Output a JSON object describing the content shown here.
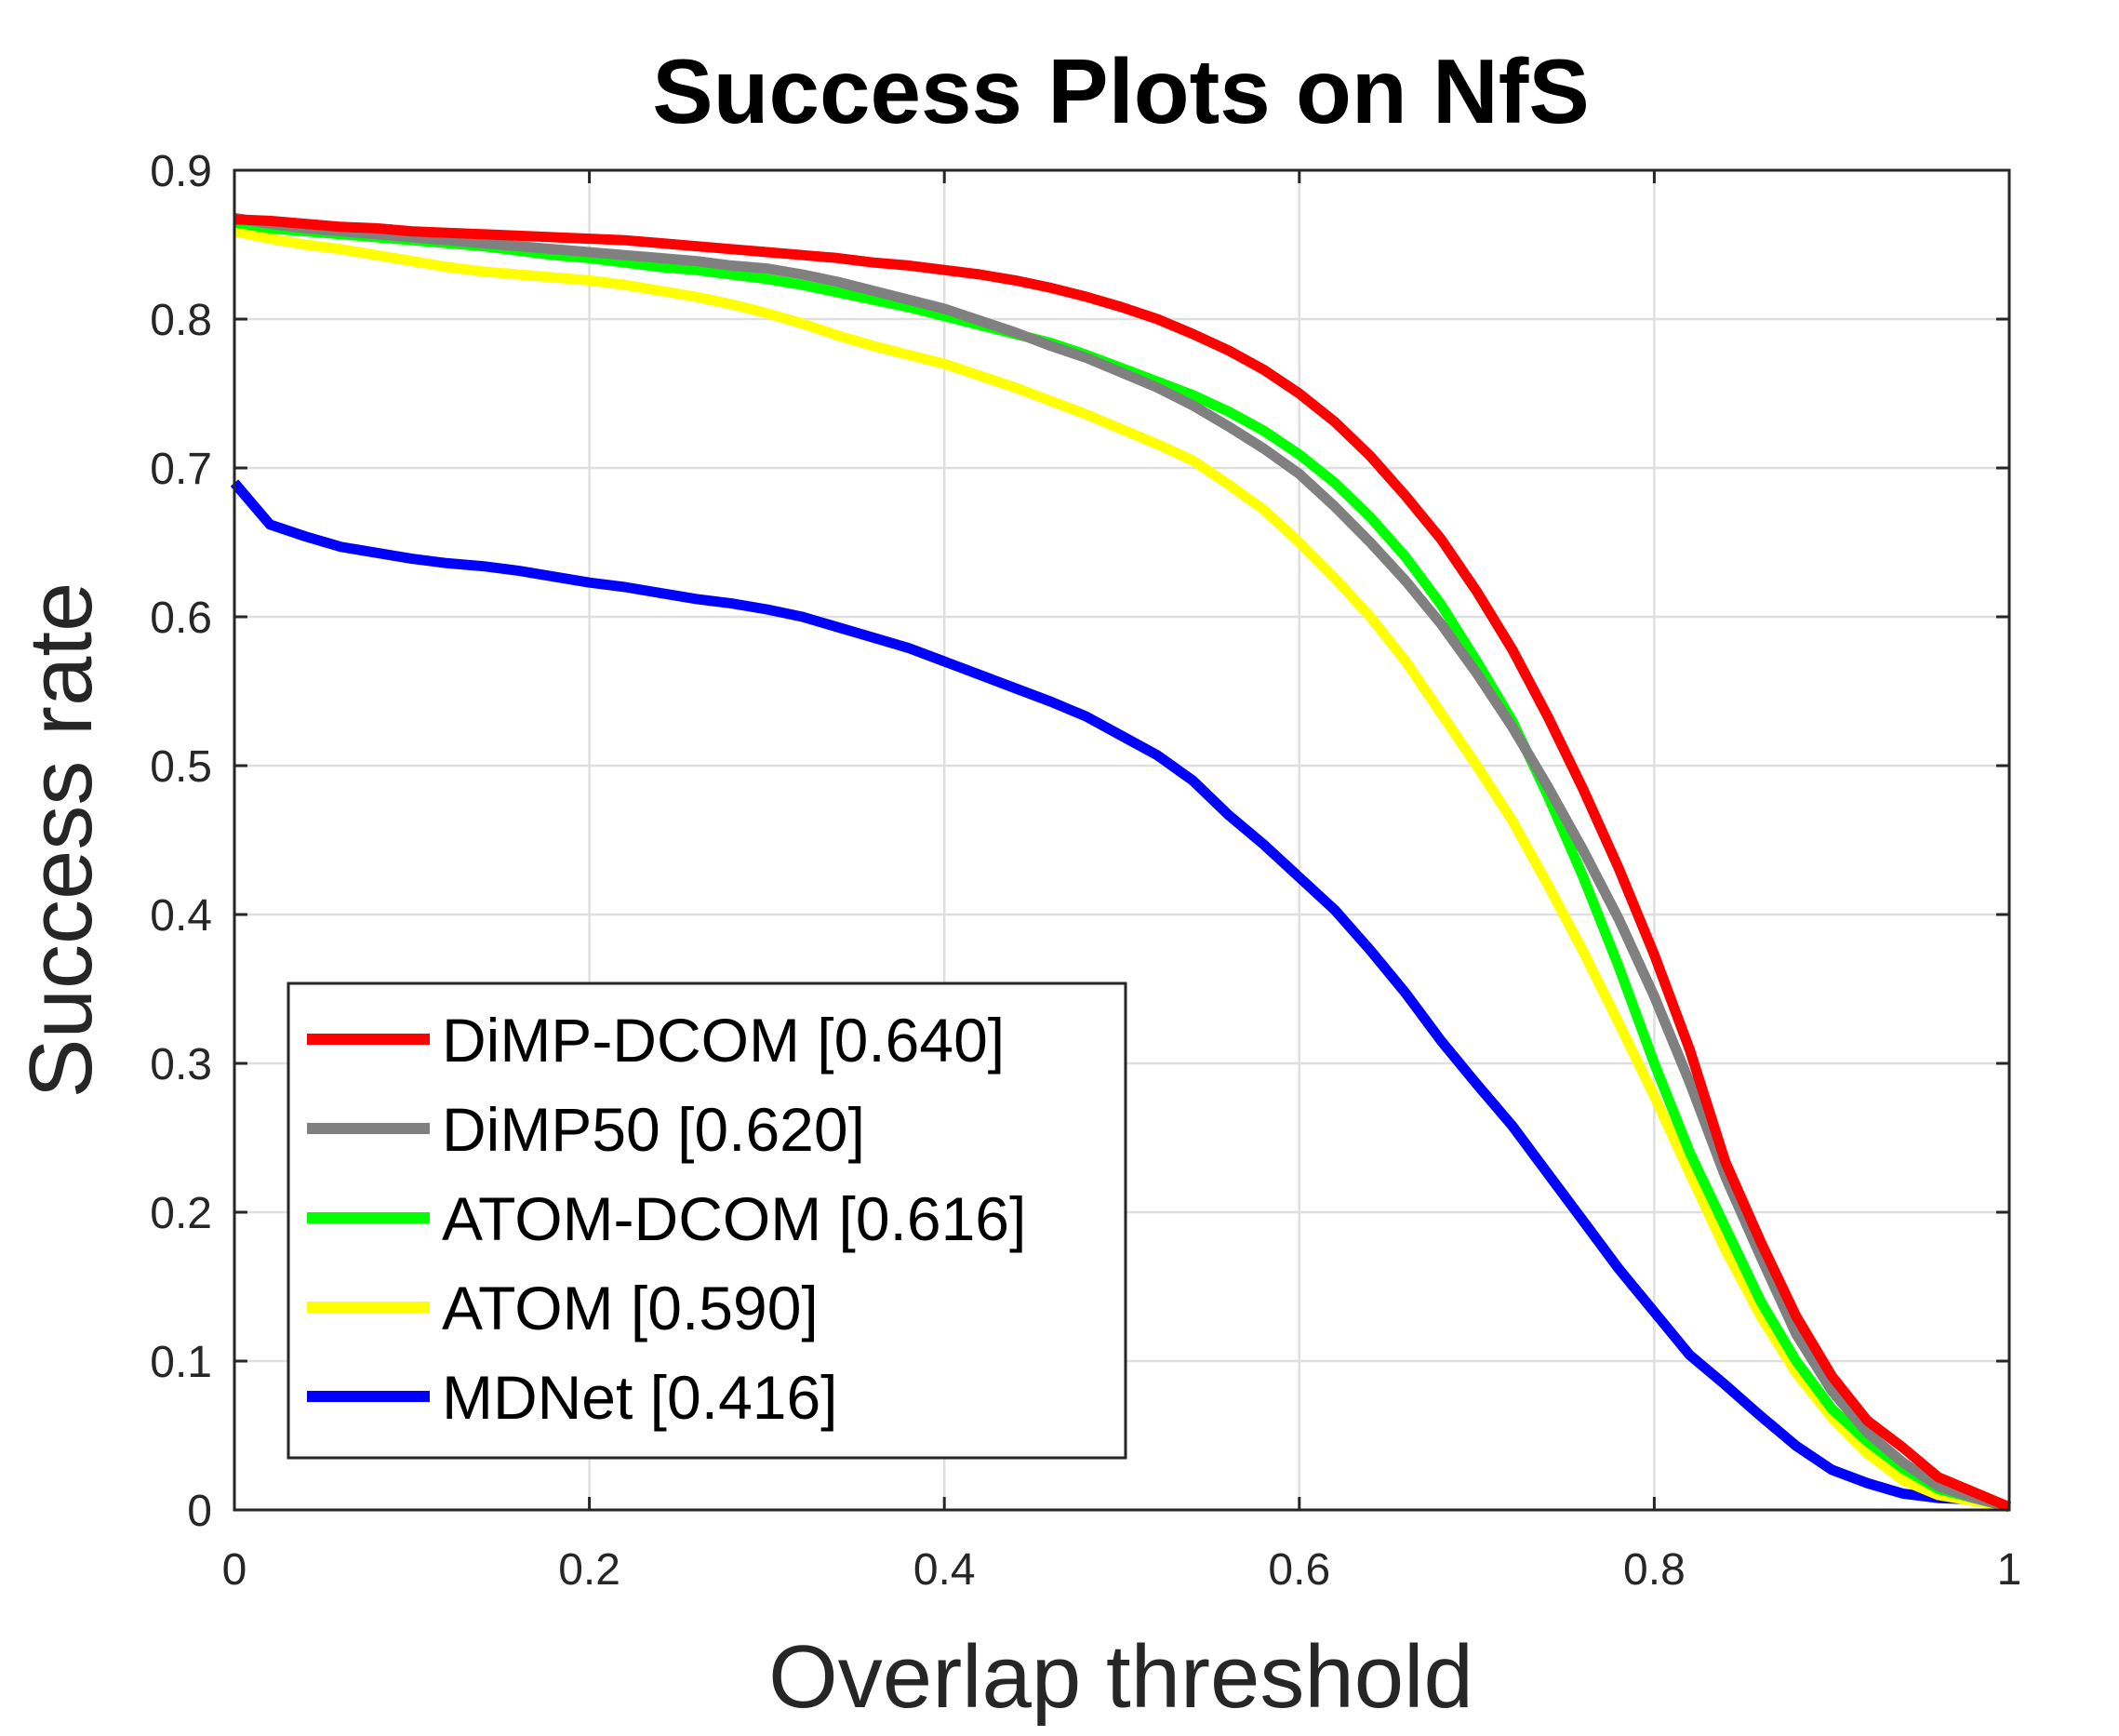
{
  "chart_data": {
    "type": "line",
    "title": "Success Plots on NfS",
    "xlabel": "Overlap threshold",
    "ylabel": "Success rate",
    "xlim": [
      0,
      1
    ],
    "ylim": [
      0,
      0.9
    ],
    "xticks": [
      0,
      0.2,
      0.4,
      0.6,
      0.8,
      1
    ],
    "xtick_labels": [
      "0",
      "0.2",
      "0.4",
      "0.6",
      "0.8",
      "1"
    ],
    "yticks": [
      0,
      0.1,
      0.2,
      0.3,
      0.4,
      0.5,
      0.6,
      0.7,
      0.8,
      0.9
    ],
    "ytick_labels": [
      "0",
      "0.1",
      "0.2",
      "0.3",
      "0.4",
      "0.5",
      "0.6",
      "0.7",
      "0.8",
      "0.9"
    ],
    "grid": true,
    "legend_position": "bottom-left",
    "x": [
      0,
      0.02,
      0.04,
      0.06,
      0.08,
      0.1,
      0.12,
      0.14,
      0.16,
      0.18,
      0.2,
      0.22,
      0.24,
      0.26,
      0.28,
      0.3,
      0.32,
      0.34,
      0.36,
      0.38,
      0.4,
      0.42,
      0.44,
      0.46,
      0.48,
      0.5,
      0.52,
      0.54,
      0.56,
      0.58,
      0.6,
      0.62,
      0.64,
      0.66,
      0.68,
      0.7,
      0.72,
      0.74,
      0.76,
      0.78,
      0.8,
      0.82,
      0.84,
      0.86,
      0.88,
      0.9,
      0.92,
      0.94,
      0.96,
      0.98,
      1.0
    ],
    "series": [
      {
        "name": "DiMP-DCOM [0.640]",
        "color": "#ff0000",
        "values": [
          0.867,
          0.866,
          0.864,
          0.862,
          0.861,
          0.859,
          0.858,
          0.857,
          0.856,
          0.855,
          0.854,
          0.853,
          0.851,
          0.849,
          0.847,
          0.845,
          0.843,
          0.841,
          0.838,
          0.836,
          0.833,
          0.83,
          0.826,
          0.821,
          0.815,
          0.808,
          0.8,
          0.79,
          0.779,
          0.766,
          0.75,
          0.731,
          0.708,
          0.681,
          0.652,
          0.617,
          0.578,
          0.533,
          0.484,
          0.431,
          0.373,
          0.309,
          0.234,
          0.18,
          0.13,
          0.09,
          0.06,
          0.042,
          0.022,
          0.012,
          0.002
        ]
      },
      {
        "name": "DiMP50 [0.620]",
        "color": "#808080",
        "values": [
          0.868,
          0.864,
          0.861,
          0.859,
          0.857,
          0.855,
          0.853,
          0.851,
          0.849,
          0.847,
          0.845,
          0.843,
          0.841,
          0.839,
          0.836,
          0.834,
          0.83,
          0.825,
          0.819,
          0.813,
          0.807,
          0.799,
          0.791,
          0.782,
          0.774,
          0.764,
          0.754,
          0.742,
          0.728,
          0.713,
          0.696,
          0.674,
          0.65,
          0.624,
          0.595,
          0.562,
          0.526,
          0.486,
          0.443,
          0.397,
          0.345,
          0.287,
          0.224,
          0.17,
          0.118,
          0.08,
          0.052,
          0.032,
          0.016,
          0.008,
          0.002
        ]
      },
      {
        "name": "ATOM-DCOM [0.616]",
        "color": "#00ff00",
        "values": [
          0.865,
          0.861,
          0.859,
          0.857,
          0.855,
          0.853,
          0.851,
          0.849,
          0.846,
          0.843,
          0.841,
          0.838,
          0.835,
          0.833,
          0.83,
          0.827,
          0.823,
          0.818,
          0.813,
          0.808,
          0.802,
          0.796,
          0.79,
          0.784,
          0.776,
          0.767,
          0.758,
          0.749,
          0.738,
          0.725,
          0.709,
          0.69,
          0.667,
          0.64,
          0.608,
          0.57,
          0.53,
          0.48,
          0.425,
          0.365,
          0.3,
          0.24,
          0.19,
          0.14,
          0.1,
          0.068,
          0.046,
          0.028,
          0.014,
          0.008,
          0.002
        ]
      },
      {
        "name": "ATOM [0.590]",
        "color": "#ffff00",
        "values": [
          0.859,
          0.854,
          0.85,
          0.847,
          0.843,
          0.839,
          0.835,
          0.832,
          0.83,
          0.828,
          0.826,
          0.823,
          0.819,
          0.815,
          0.81,
          0.804,
          0.797,
          0.789,
          0.782,
          0.776,
          0.77,
          0.762,
          0.754,
          0.745,
          0.736,
          0.726,
          0.716,
          0.705,
          0.689,
          0.672,
          0.65,
          0.626,
          0.6,
          0.57,
          0.535,
          0.5,
          0.463,
          0.42,
          0.375,
          0.327,
          0.278,
          0.226,
          0.175,
          0.13,
          0.092,
          0.062,
          0.038,
          0.02,
          0.01,
          0.006,
          0.002
        ]
      },
      {
        "name": "MDNet [0.416]",
        "color": "#0000ff",
        "values": [
          0.69,
          0.662,
          0.654,
          0.647,
          0.643,
          0.639,
          0.636,
          0.634,
          0.631,
          0.627,
          0.623,
          0.62,
          0.616,
          0.612,
          0.609,
          0.605,
          0.6,
          0.593,
          0.586,
          0.579,
          0.57,
          0.561,
          0.552,
          0.543,
          0.533,
          0.52,
          0.507,
          0.49,
          0.467,
          0.447,
          0.425,
          0.403,
          0.376,
          0.347,
          0.315,
          0.286,
          0.258,
          0.226,
          0.194,
          0.162,
          0.133,
          0.104,
          0.084,
          0.063,
          0.043,
          0.027,
          0.018,
          0.011,
          0.008,
          0.007,
          0.002
        ]
      }
    ]
  }
}
